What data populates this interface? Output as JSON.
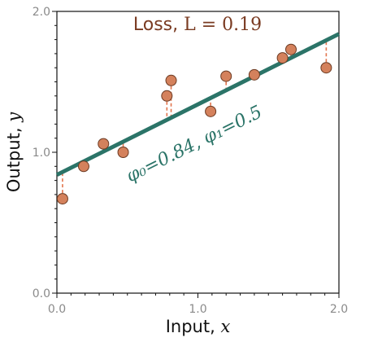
{
  "colors": {
    "fit_line": "#2b7468",
    "points_fill": "#d4815c",
    "points_stroke": "#6b3a22",
    "residuals": "#e2744c",
    "title": "#7a3b22",
    "annotation": "#2b7468",
    "axis": "#111111",
    "tick_label": "#8a8a8a"
  },
  "chart_data": {
    "type": "scatter",
    "title_prefix": "Loss, ",
    "title_math": "L = 0.19",
    "xlabel_text": "Input, ",
    "xlabel_var": "x",
    "ylabel_text": "Output, ",
    "ylabel_var": "y",
    "xlim": [
      0,
      2
    ],
    "ylim": [
      0,
      2
    ],
    "xticks": [
      0,
      1,
      2
    ],
    "yticks": [
      0,
      1,
      2
    ],
    "xtick_labels": [
      "0.0",
      "1.0",
      "2.0"
    ],
    "ytick_labels": [
      "0.0",
      "1.0",
      "2.0"
    ],
    "grid": false,
    "legend": false,
    "annotation": "φ₀=0.84, φ₁=0.5",
    "line": {
      "intercept": 0.84,
      "slope": 0.5
    },
    "points": [
      {
        "x": 0.04,
        "y": 0.67
      },
      {
        "x": 0.19,
        "y": 0.9
      },
      {
        "x": 0.33,
        "y": 1.06
      },
      {
        "x": 0.47,
        "y": 1.0
      },
      {
        "x": 0.78,
        "y": 1.4
      },
      {
        "x": 0.81,
        "y": 1.51
      },
      {
        "x": 1.09,
        "y": 1.29
      },
      {
        "x": 1.2,
        "y": 1.54
      },
      {
        "x": 1.4,
        "y": 1.55
      },
      {
        "x": 1.6,
        "y": 1.67
      },
      {
        "x": 1.66,
        "y": 1.73
      },
      {
        "x": 1.91,
        "y": 1.6
      }
    ]
  }
}
